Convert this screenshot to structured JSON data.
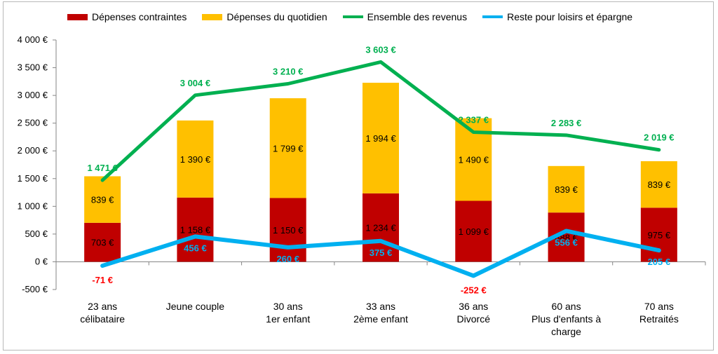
{
  "chart_data": {
    "type": "bar",
    "stacked": true,
    "y_min": -500,
    "y_max": 4000,
    "y_ticks": [
      "4 000 €",
      "3 500 €",
      "3 000 €",
      "2 500 €",
      "2 000 €",
      "1 500 €",
      "1 000 €",
      "500 €",
      "0 €",
      "-500 €"
    ],
    "categories": [
      [
        "23 ans",
        "célibataire"
      ],
      [
        "Jeune couple"
      ],
      [
        "30 ans",
        "1er enfant"
      ],
      [
        "33 ans",
        "2ème enfant"
      ],
      [
        "36 ans",
        "Divorcé"
      ],
      [
        "60 ans",
        "Plus d'enfants à",
        "charge"
      ],
      [
        "70 ans",
        "Retraités"
      ]
    ],
    "series": [
      {
        "name": "Dépenses contraintes",
        "kind": "bar",
        "color": "#C00000",
        "values": [
          703,
          1158,
          1150,
          1234,
          1099,
          888,
          975
        ],
        "labels": [
          "703 €",
          "1 158 €",
          "1 150 €",
          "1 234 €",
          "1 099 €",
          "888 €",
          "975 €"
        ]
      },
      {
        "name": "Dépenses du quotidien",
        "kind": "bar",
        "color": "#FFC000",
        "values": [
          839,
          1390,
          1799,
          1994,
          1490,
          839,
          839
        ],
        "labels": [
          "839 €",
          "1 390 €",
          "1 799 €",
          "1 994 €",
          "1 490 €",
          "839 €",
          "839 €"
        ]
      },
      {
        "name": "Ensemble des revenus",
        "kind": "line",
        "color": "#00B050",
        "values": [
          1471,
          3004,
          3210,
          3603,
          2337,
          2283,
          2019
        ],
        "labels": [
          "1 471 €",
          "3 004 €",
          "3 210 €",
          "3 603 €",
          "2 337 €",
          "2 283 €",
          "2 019 €"
        ]
      },
      {
        "name": "Reste pour loisirs et épargne",
        "kind": "line",
        "color": "#00B0F0",
        "values": [
          -71,
          456,
          260,
          375,
          -252,
          556,
          205
        ],
        "labels": [
          "-71 €",
          "456 €",
          "260 €",
          "375 €",
          "-252 €",
          "556 €",
          "205 €"
        ],
        "negative_label_color": "#FF0000"
      }
    ],
    "legend_position": "top",
    "grid": false
  }
}
